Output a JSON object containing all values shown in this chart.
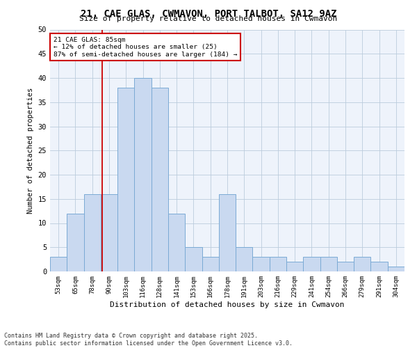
{
  "title": "21, CAE GLAS, CWMAVON, PORT TALBOT, SA12 9AZ",
  "subtitle": "Size of property relative to detached houses in Cwmavon",
  "xlabel": "Distribution of detached houses by size in Cwmavon",
  "ylabel": "Number of detached properties",
  "categories": [
    "53sqm",
    "65sqm",
    "78sqm",
    "90sqm",
    "103sqm",
    "116sqm",
    "128sqm",
    "141sqm",
    "153sqm",
    "166sqm",
    "178sqm",
    "191sqm",
    "203sqm",
    "216sqm",
    "229sqm",
    "241sqm",
    "254sqm",
    "266sqm",
    "279sqm",
    "291sqm",
    "304sqm"
  ],
  "bar_heights": [
    3,
    12,
    16,
    16,
    38,
    40,
    38,
    12,
    5,
    3,
    16,
    5,
    3,
    3,
    2,
    3,
    3,
    2,
    3,
    2,
    1
  ],
  "bar_color": "#c9d9f0",
  "bar_edge_color": "#7aaad4",
  "grid_color": "#bbccdd",
  "bg_color": "#eef3fb",
  "red_line_color": "#cc0000",
  "annotation_box_color": "#ffffff",
  "annotation_box_edge": "#cc0000",
  "annotation_text_line1": "21 CAE GLAS: 85sqm",
  "annotation_text_line2": "← 12% of detached houses are smaller (25)",
  "annotation_text_line3": "87% of semi-detached houses are larger (184) →",
  "ylim": [
    0,
    50
  ],
  "yticks": [
    0,
    5,
    10,
    15,
    20,
    25,
    30,
    35,
    40,
    45,
    50
  ],
  "footer_line1": "Contains HM Land Registry data © Crown copyright and database right 2025.",
  "footer_line2": "Contains public sector information licensed under the Open Government Licence v3.0.",
  "red_line_idx": 2.58
}
